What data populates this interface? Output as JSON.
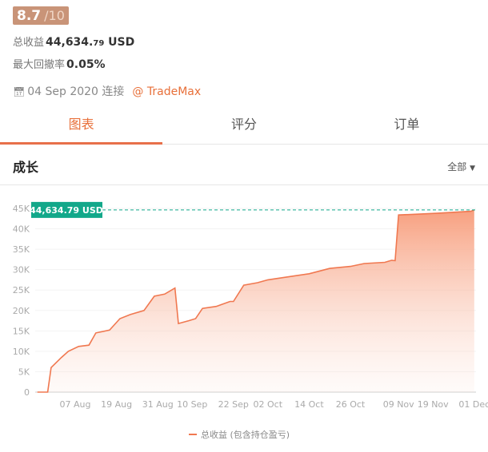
{
  "header": {
    "score": "8.7",
    "score_max": "/10",
    "total_label": "总收益",
    "total_main": "44,634.",
    "total_cents": "79",
    "total_unit": "USD",
    "drawdown_label": "最大回撤率",
    "drawdown_value": "0.05%",
    "date_icon": "calendar-icon",
    "date": "04 Sep 2020 连接",
    "broker": "@ TradeMax"
  },
  "tabs": [
    {
      "label": "图表",
      "active": true
    },
    {
      "label": "评分"
    },
    {
      "label": "订单"
    }
  ],
  "section": {
    "title": "成长",
    "filter": "全部"
  },
  "colors": {
    "accent": "#e8703a",
    "line": "#f07850",
    "marker": "#12a88a"
  },
  "chart_data": {
    "type": "area",
    "title": "",
    "xlabel": "",
    "ylabel": "",
    "ylim": [
      0,
      45000
    ],
    "yticks": [
      "0",
      "5K",
      "10K",
      "15K",
      "20K",
      "25K",
      "30K",
      "35K",
      "40K",
      "45K"
    ],
    "xticks": [
      "07 Aug",
      "19 Aug",
      "31 Aug",
      "10 Sep",
      "22 Sep",
      "02 Oct",
      "14 Oct",
      "26 Oct",
      "09 Nov",
      "19 Nov",
      "01 Dec"
    ],
    "grid": true,
    "current_label": "44,634.79 USD",
    "legend": "总收益 (包含持仓盈亏)",
    "legend_position": "bottom",
    "series": [
      {
        "name": "总收益 (包含持仓盈亏)",
        "points": [
          [
            "2020-07-27",
            0
          ],
          [
            "2020-07-30",
            0
          ],
          [
            "2020-07-31",
            6000
          ],
          [
            "2020-08-03",
            8500
          ],
          [
            "2020-08-05",
            10000
          ],
          [
            "2020-08-08",
            11200
          ],
          [
            "2020-08-11",
            11500
          ],
          [
            "2020-08-13",
            14500
          ],
          [
            "2020-08-17",
            15200
          ],
          [
            "2020-08-20",
            18000
          ],
          [
            "2020-08-23",
            19000
          ],
          [
            "2020-08-27",
            20000
          ],
          [
            "2020-08-30",
            23500
          ],
          [
            "2020-09-02",
            24000
          ],
          [
            "2020-09-05",
            25500
          ],
          [
            "2020-09-06",
            16800
          ],
          [
            "2020-09-09",
            17500
          ],
          [
            "2020-09-11",
            18000
          ],
          [
            "2020-09-13",
            20500
          ],
          [
            "2020-09-17",
            21000
          ],
          [
            "2020-09-21",
            22200
          ],
          [
            "2020-09-22",
            22200
          ],
          [
            "2020-09-25",
            26200
          ],
          [
            "2020-09-29",
            26800
          ],
          [
            "2020-10-02",
            27500
          ],
          [
            "2020-10-10",
            28500
          ],
          [
            "2020-10-14",
            29000
          ],
          [
            "2020-10-20",
            30300
          ],
          [
            "2020-10-26",
            30800
          ],
          [
            "2020-10-30",
            31500
          ],
          [
            "2020-11-05",
            31800
          ],
          [
            "2020-11-07",
            32300
          ],
          [
            "2020-11-08",
            32200
          ],
          [
            "2020-11-09",
            43400
          ],
          [
            "2020-11-20",
            43800
          ],
          [
            "2020-11-30",
            44300
          ],
          [
            "2020-12-01",
            44634.79
          ]
        ]
      }
    ]
  }
}
